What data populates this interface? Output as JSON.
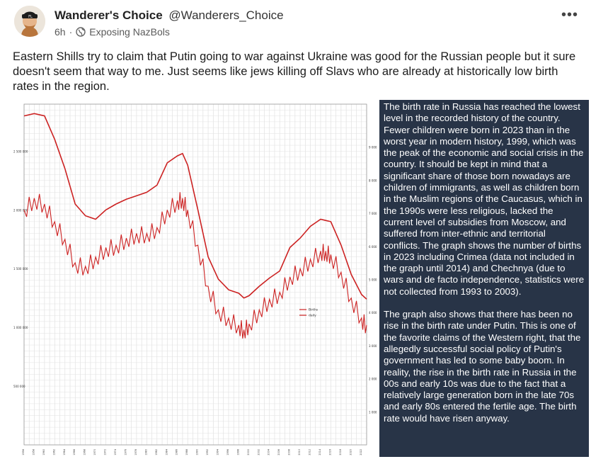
{
  "post": {
    "author_name": "Wanderer's Choice",
    "author_handle": "@Wanderers_Choice",
    "time": "6h",
    "dot": "·",
    "community": "Exposing NazBols",
    "more_label": "•••",
    "text": "Eastern Shills try to claim that Putin going to war against Ukraine was good for the Russian people but it sure doesn't seem that way to me. Just seems like jews killing off Slavs who are already at historically low birth rates in the region."
  },
  "side_text": {
    "p1": "The birth rate in Russia has reached the lowest level in the recorded history of the country. Fewer children were born in 2023 than in the worst year in modern history, 1999, which was the peak of the economic and social crisis in the country. It should be kept in mind that a significant share of those born nowadays are children of immigrants, as well as children born in the Muslim regions of the Caucasus, which in the 1990s were less religious, lacked the current level of subsidies from Moscow, and suffered from inter-ethnic and territorial conflicts. The graph shows the number of births in 2023 including Crimea (data not included in the graph until 2014) and Chechnya (due to wars and de facto independence, statistics were not collected from 1993 to 2003).",
    "p2": "The graph also shows that there has been no rise in the birth rate under Putin. This is one of the favorite claims of the Western right, that the allegedly successful social policy of Putin's government has led to some baby boom. In reality, the rise in the birth rate in Russia in the 00s and early 10s was due to the fact that a relatively large generation born in the late 70s and early 80s entered the fertile age. The birth rate would have risen anyway."
  },
  "icons": {
    "avatar": "avatar-icon",
    "globe": "globe-icon",
    "more": "more-icon"
  },
  "colors": {
    "line": "#cc2222",
    "panel_bg": "#283447",
    "grid": "#d8d8d8"
  },
  "chart_data": {
    "type": "line",
    "x": [
      1956,
      1958,
      1960,
      1962,
      1964,
      1966,
      1968,
      1970,
      1972,
      1974,
      1976,
      1978,
      1980,
      1982,
      1984,
      1986,
      1987,
      1988,
      1990,
      1992,
      1994,
      1996,
      1998,
      1999,
      2000,
      2002,
      2004,
      2006,
      2008,
      2010,
      2012,
      2014,
      2015,
      2016,
      2018,
      2020,
      2022,
      2023
    ],
    "series": [
      {
        "name": "Births",
        "values": [
          2800000,
          2820000,
          2800000,
          2600000,
          2350000,
          2050000,
          1950000,
          1920000,
          2000000,
          2050000,
          2090000,
          2120000,
          2150000,
          2210000,
          2400000,
          2460000,
          2480000,
          2380000,
          2000000,
          1600000,
          1410000,
          1320000,
          1290000,
          1250000,
          1270000,
          1350000,
          1420000,
          1480000,
          1680000,
          1760000,
          1860000,
          1920000,
          1910000,
          1900000,
          1700000,
          1450000,
          1280000,
          1240000
        ]
      },
      {
        "name": "daily",
        "values": [
          2000000,
          2100000,
          2050000,
          1900000,
          1750000,
          1550000,
          1520000,
          1600000,
          1680000,
          1700000,
          1760000,
          1800000,
          1800000,
          1850000,
          2000000,
          2080000,
          2100000,
          2000000,
          1700000,
          1350000,
          1150000,
          1080000,
          1020000,
          980000,
          1030000,
          1150000,
          1240000,
          1300000,
          1430000,
          1500000,
          1580000,
          1650000,
          1650000,
          1620000,
          1470000,
          1250000,
          1080000,
          1020000
        ]
      }
    ],
    "yleft_ticks": [
      "2 500 000",
      "2 000 000",
      "1 500 000",
      "1 000 000",
      "500 000"
    ],
    "yright_ticks": [
      "9 000",
      "8 000",
      "7 000",
      "6 000",
      "5 000",
      "4 000",
      "3 000",
      "2 000",
      "1 000"
    ],
    "ylim": [
      0,
      2900000
    ],
    "xlim": [
      1956,
      2023
    ],
    "legend": "right"
  }
}
